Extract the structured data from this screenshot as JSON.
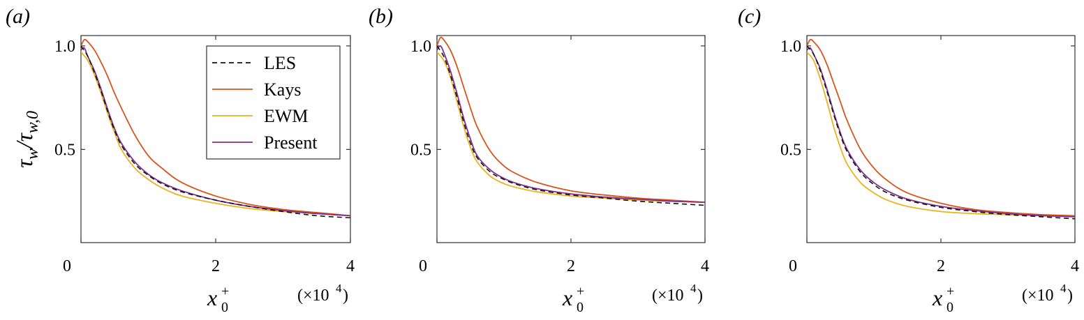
{
  "ylabel": {
    "main": "τ",
    "sub_w": "w",
    "slash": "/",
    "main2": "τ",
    "sub_w0": "w,0"
  },
  "xlabel": {
    "main": "x",
    "sub": "0",
    "sup": "+"
  },
  "x_multiplier": "(×10",
  "x_multiplier_exp": "4",
  "x_multiplier_close": ")",
  "colors": {
    "LES": "#111111",
    "Kays": "#d95319",
    "EWM": "#edb120",
    "Present": "#7e2f8e"
  },
  "chart_data": [
    {
      "panel": "(a)",
      "type": "line",
      "xlim": [
        0,
        4
      ],
      "ylim": [
        0.05,
        1.05
      ],
      "xticks": [
        0,
        2,
        4
      ],
      "yticks": [
        0.5,
        1.0
      ],
      "x_tick_labels": [
        "0",
        "2",
        "4"
      ],
      "y_tick_labels": [
        "0.5",
        "1.0"
      ],
      "legend": {
        "entries": [
          "LES",
          "Kays",
          "EWM",
          "Present"
        ],
        "placement": "top-right"
      },
      "series": [
        {
          "name": "LES",
          "style": "dashed",
          "x": [
            0.0,
            0.1,
            0.2,
            0.3,
            0.4,
            0.5,
            0.6,
            0.8,
            1.0,
            1.2,
            1.5,
            2.0,
            2.5,
            3.0,
            3.5,
            4.0
          ],
          "y": [
            1.0,
            0.95,
            0.87,
            0.78,
            0.68,
            0.59,
            0.52,
            0.43,
            0.375,
            0.335,
            0.295,
            0.255,
            0.225,
            0.2,
            0.18,
            0.17
          ]
        },
        {
          "name": "Kays",
          "style": "solid",
          "x": [
            0.0,
            0.05,
            0.1,
            0.2,
            0.3,
            0.4,
            0.5,
            0.6,
            0.8,
            1.0,
            1.2,
            1.5,
            2.0,
            2.5,
            3.0,
            3.5,
            4.0
          ],
          "y": [
            1.0,
            1.03,
            1.02,
            0.98,
            0.92,
            0.85,
            0.77,
            0.7,
            0.57,
            0.47,
            0.41,
            0.34,
            0.275,
            0.235,
            0.21,
            0.195,
            0.18
          ]
        },
        {
          "name": "EWM",
          "style": "solid",
          "x": [
            0.0,
            0.1,
            0.2,
            0.3,
            0.4,
            0.5,
            0.6,
            0.8,
            1.0,
            1.2,
            1.5,
            2.0,
            2.5,
            3.0,
            3.5,
            4.0
          ],
          "y": [
            0.97,
            0.93,
            0.86,
            0.77,
            0.67,
            0.58,
            0.5,
            0.41,
            0.355,
            0.315,
            0.275,
            0.24,
            0.215,
            0.2,
            0.19,
            0.18
          ]
        },
        {
          "name": "Present",
          "style": "solid",
          "x": [
            0.0,
            0.05,
            0.1,
            0.2,
            0.3,
            0.4,
            0.5,
            0.6,
            0.8,
            1.0,
            1.2,
            1.5,
            2.0,
            2.5,
            3.0,
            3.5,
            4.0
          ],
          "y": [
            0.98,
            0.99,
            0.95,
            0.88,
            0.79,
            0.69,
            0.6,
            0.53,
            0.44,
            0.38,
            0.34,
            0.3,
            0.255,
            0.225,
            0.205,
            0.19,
            0.18
          ]
        }
      ]
    },
    {
      "panel": "(b)",
      "type": "line",
      "xlim": [
        0,
        4
      ],
      "ylim": [
        0.05,
        1.05
      ],
      "xticks": [
        0,
        2,
        4
      ],
      "yticks": [
        0.5,
        1.0
      ],
      "x_tick_labels": [
        "0",
        "2",
        "4"
      ],
      "y_tick_labels": [
        "0.5",
        "1.0"
      ],
      "series": [
        {
          "name": "LES",
          "style": "dashed",
          "x": [
            0.0,
            0.1,
            0.2,
            0.3,
            0.4,
            0.5,
            0.6,
            0.8,
            1.0,
            1.2,
            1.5,
            2.0,
            2.5,
            3.0,
            3.5,
            4.0
          ],
          "y": [
            1.0,
            0.95,
            0.86,
            0.75,
            0.63,
            0.53,
            0.46,
            0.39,
            0.355,
            0.33,
            0.305,
            0.28,
            0.265,
            0.25,
            0.24,
            0.23
          ]
        },
        {
          "name": "Kays",
          "style": "solid",
          "x": [
            0.0,
            0.05,
            0.1,
            0.2,
            0.3,
            0.4,
            0.5,
            0.6,
            0.8,
            1.0,
            1.2,
            1.5,
            2.0,
            2.5,
            3.0,
            3.5,
            4.0
          ],
          "y": [
            1.0,
            1.04,
            1.03,
            0.98,
            0.9,
            0.8,
            0.7,
            0.61,
            0.49,
            0.42,
            0.38,
            0.34,
            0.3,
            0.28,
            0.265,
            0.255,
            0.245
          ]
        },
        {
          "name": "EWM",
          "style": "solid",
          "x": [
            0.0,
            0.1,
            0.2,
            0.3,
            0.4,
            0.5,
            0.6,
            0.8,
            1.0,
            1.2,
            1.5,
            2.0,
            2.5,
            3.0,
            3.5,
            4.0
          ],
          "y": [
            0.97,
            0.93,
            0.85,
            0.73,
            0.61,
            0.51,
            0.44,
            0.37,
            0.335,
            0.315,
            0.295,
            0.275,
            0.265,
            0.255,
            0.25,
            0.245
          ]
        },
        {
          "name": "Present",
          "style": "solid",
          "x": [
            0.0,
            0.05,
            0.1,
            0.2,
            0.3,
            0.4,
            0.5,
            0.6,
            0.8,
            1.0,
            1.2,
            1.5,
            2.0,
            2.5,
            3.0,
            3.5,
            4.0
          ],
          "y": [
            0.98,
            1.0,
            0.97,
            0.88,
            0.77,
            0.65,
            0.55,
            0.47,
            0.4,
            0.36,
            0.335,
            0.31,
            0.285,
            0.27,
            0.26,
            0.25,
            0.245
          ]
        }
      ]
    },
    {
      "panel": "(c)",
      "type": "line",
      "xlim": [
        0,
        4
      ],
      "ylim": [
        0.05,
        1.05
      ],
      "xticks": [
        0,
        2,
        4
      ],
      "yticks": [
        0.5,
        1.0
      ],
      "x_tick_labels": [
        "0",
        "2",
        "4"
      ],
      "y_tick_labels": [
        "0.5",
        "1.0"
      ],
      "series": [
        {
          "name": "LES",
          "style": "dashed",
          "x": [
            0.0,
            0.1,
            0.2,
            0.3,
            0.4,
            0.5,
            0.6,
            0.8,
            1.0,
            1.2,
            1.5,
            2.0,
            2.5,
            3.0,
            3.5,
            4.0
          ],
          "y": [
            1.0,
            0.96,
            0.88,
            0.78,
            0.67,
            0.57,
            0.49,
            0.39,
            0.33,
            0.29,
            0.255,
            0.22,
            0.2,
            0.185,
            0.175,
            0.165
          ]
        },
        {
          "name": "Kays",
          "style": "solid",
          "x": [
            0.0,
            0.05,
            0.1,
            0.2,
            0.3,
            0.4,
            0.5,
            0.6,
            0.8,
            1.0,
            1.2,
            1.5,
            2.0,
            2.5,
            3.0,
            3.5,
            4.0
          ],
          "y": [
            1.0,
            1.03,
            1.02,
            0.98,
            0.91,
            0.82,
            0.73,
            0.64,
            0.5,
            0.41,
            0.35,
            0.29,
            0.24,
            0.21,
            0.195,
            0.185,
            0.18
          ]
        },
        {
          "name": "EWM",
          "style": "solid",
          "x": [
            0.0,
            0.1,
            0.2,
            0.3,
            0.4,
            0.5,
            0.6,
            0.8,
            1.0,
            1.2,
            1.5,
            2.0,
            2.5,
            3.0,
            3.5,
            4.0
          ],
          "y": [
            0.97,
            0.93,
            0.84,
            0.73,
            0.61,
            0.51,
            0.43,
            0.34,
            0.29,
            0.255,
            0.225,
            0.2,
            0.19,
            0.185,
            0.18,
            0.175
          ]
        },
        {
          "name": "Present",
          "style": "solid",
          "x": [
            0.0,
            0.05,
            0.1,
            0.2,
            0.3,
            0.4,
            0.5,
            0.6,
            0.8,
            1.0,
            1.2,
            1.5,
            2.0,
            2.5,
            3.0,
            3.5,
            4.0
          ],
          "y": [
            0.98,
            0.99,
            0.96,
            0.89,
            0.79,
            0.68,
            0.58,
            0.5,
            0.4,
            0.34,
            0.3,
            0.26,
            0.225,
            0.205,
            0.19,
            0.18,
            0.175
          ]
        }
      ]
    }
  ]
}
